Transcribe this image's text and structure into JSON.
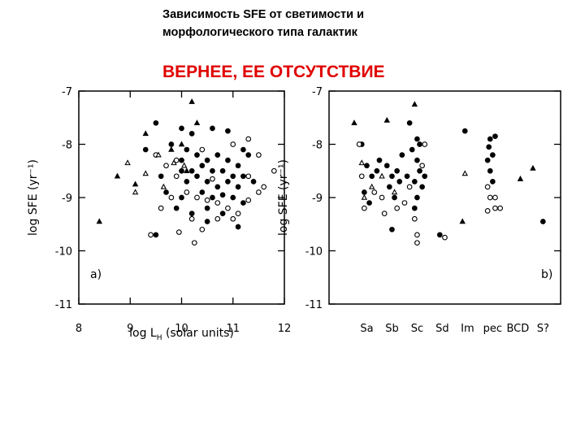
{
  "slide": {
    "title_lines": [
      "Зависимость SFE от светимости и",
      "морфологического типа галактик"
    ],
    "subtitle": "ВЕРНЕЕ, ЕЕ ОТСУТСТВИЕ"
  },
  "chart_data": [
    {
      "type": "scatter",
      "ylabel": "log SFE (yr⁻¹)",
      "xlabel": "log L",
      "xlabel_sub": "H",
      "xlabel_end": " (solar units)",
      "annotation": "a)",
      "xlim": [
        8,
        12
      ],
      "xticks": [
        8,
        9,
        10,
        11,
        12
      ],
      "ylim": [
        -11,
        -7
      ],
      "yticks": [
        -11,
        -10,
        -9,
        -8,
        -7
      ],
      "series": [
        {
          "marker": "filled-circle",
          "color": "#000000",
          "x": [
            9.5,
            9.8,
            10.0,
            10.2,
            10.6,
            10.9,
            10.1,
            10.3,
            10.5,
            10.7,
            10.9,
            11.1,
            11.3,
            10.0,
            10.2,
            10.4,
            10.6,
            10.8,
            11.0,
            11.2,
            11.4,
            10.1,
            10.3,
            10.5,
            10.7,
            10.9,
            11.1,
            10.0,
            10.4,
            10.6,
            10.8,
            11.0,
            9.6,
            9.7,
            9.3,
            9.9,
            10.2,
            10.5,
            10.8,
            11.2,
            9.5,
            10.5,
            11.1,
            10.0,
            11.2
          ],
          "y": [
            -7.6,
            -8.0,
            -7.7,
            -7.8,
            -7.7,
            -7.75,
            -8.1,
            -8.2,
            -8.3,
            -8.2,
            -8.3,
            -8.4,
            -8.2,
            -8.5,
            -8.5,
            -8.4,
            -8.5,
            -8.5,
            -8.6,
            -8.6,
            -8.7,
            -8.7,
            -8.6,
            -8.7,
            -8.8,
            -8.7,
            -8.8,
            -9.0,
            -8.9,
            -9.0,
            -8.95,
            -9.0,
            -8.6,
            -8.9,
            -8.1,
            -9.2,
            -9.3,
            -9.2,
            -9.3,
            -9.1,
            -9.7,
            -9.45,
            -9.55,
            -8.3,
            -8.1
          ]
        },
        {
          "marker": "open-circle",
          "color": "#000000",
          "x": [
            9.5,
            9.7,
            9.9,
            10.1,
            10.3,
            10.5,
            10.7,
            10.9,
            11.1,
            11.3,
            11.5,
            11.6,
            11.8,
            11.5,
            11.3,
            11.0,
            10.4,
            10.2,
            10.4,
            10.7,
            11.0,
            9.4,
            9.95,
            10.25,
            9.6,
            9.8,
            10.6,
            11.3,
            9.9
          ],
          "y": [
            -8.2,
            -8.4,
            -8.6,
            -8.9,
            -9.0,
            -9.05,
            -9.1,
            -9.2,
            -9.3,
            -9.05,
            -8.9,
            -8.8,
            -8.5,
            -8.2,
            -7.9,
            -8.0,
            -8.1,
            -9.4,
            -9.6,
            -9.4,
            -9.4,
            -9.7,
            -9.65,
            -9.85,
            -9.2,
            -9.0,
            -8.65,
            -8.6,
            -8.3
          ]
        },
        {
          "marker": "filled-triangle",
          "color": "#000000",
          "x": [
            8.4,
            8.75,
            9.1,
            9.3,
            9.8,
            10.0,
            10.2,
            10.3,
            10.1
          ],
          "y": [
            -9.45,
            -8.6,
            -8.75,
            -7.8,
            -8.1,
            -8.0,
            -7.2,
            -7.6,
            -8.5
          ]
        },
        {
          "marker": "open-triangle",
          "color": "#000000",
          "x": [
            8.95,
            9.3,
            9.55,
            9.85,
            9.65,
            9.1,
            10.05
          ],
          "y": [
            -8.35,
            -8.55,
            -8.2,
            -8.35,
            -8.8,
            -8.9,
            -8.4
          ]
        }
      ]
    },
    {
      "type": "scatter",
      "ylabel": "log SFE (yr⁻¹)",
      "annotation": "b)",
      "xlim": [
        -0.5,
        8.7
      ],
      "xticks": [
        {
          "value": 1,
          "label": "Sa"
        },
        {
          "value": 2,
          "label": "Sb"
        },
        {
          "value": 3,
          "label": "Sc"
        },
        {
          "value": 4,
          "label": "Sd"
        },
        {
          "value": 5,
          "label": "Im"
        },
        {
          "value": 6,
          "label": "pec"
        },
        {
          "value": 7,
          "label": "BCD"
        },
        {
          "value": 8,
          "label": "S?"
        }
      ],
      "ylim": [
        -11,
        -7
      ],
      "yticks": [
        -11,
        -10,
        -9,
        -8,
        -7
      ],
      "series": [
        {
          "marker": "filled-circle",
          "color": "#000000",
          "x": [
            0.8,
            1.0,
            1.2,
            1.4,
            0.9,
            1.1,
            1.5,
            1.8,
            2.0,
            2.2,
            2.4,
            1.9,
            2.1,
            2.3,
            2.6,
            2.0,
            2.8,
            3.0,
            3.1,
            2.9,
            3.0,
            3.2,
            2.9,
            3.1,
            3.0,
            2.7,
            3.3,
            3.9,
            4.9,
            5.8,
            5.9,
            6.0,
            5.9,
            6.0,
            6.1,
            5.85,
            8.0
          ],
          "y": [
            -8.0,
            -8.4,
            -8.6,
            -8.5,
            -8.9,
            -9.1,
            -8.3,
            -8.4,
            -8.6,
            -8.5,
            -8.2,
            -8.8,
            -9.0,
            -8.7,
            -8.6,
            -9.6,
            -8.1,
            -8.3,
            -8.5,
            -8.7,
            -9.0,
            -8.8,
            -9.2,
            -8.0,
            -7.9,
            -7.6,
            -8.6,
            -9.7,
            -7.75,
            -8.3,
            -8.5,
            -8.2,
            -7.9,
            -8.7,
            -7.85,
            -8.05,
            -9.45
          ]
        },
        {
          "marker": "open-circle",
          "color": "#000000",
          "x": [
            0.7,
            0.8,
            0.9,
            1.3,
            1.6,
            1.7,
            2.2,
            2.5,
            2.7,
            2.9,
            3.0,
            3.0,
            3.2,
            3.3,
            4.1,
            5.8,
            5.9,
            6.1,
            5.8,
            6.1,
            6.3
          ],
          "y": [
            -8.0,
            -8.6,
            -9.2,
            -8.9,
            -9.0,
            -9.3,
            -9.2,
            -9.1,
            -8.8,
            -9.4,
            -9.7,
            -9.85,
            -8.4,
            -8.0,
            -9.75,
            -8.8,
            -9.0,
            -9.0,
            -9.25,
            -9.2,
            -9.2
          ]
        },
        {
          "marker": "filled-triangle",
          "color": "#000000",
          "x": [
            0.5,
            1.8,
            2.9,
            4.8,
            7.1,
            7.6
          ],
          "y": [
            -7.6,
            -7.55,
            -7.25,
            -9.45,
            -8.65,
            -8.45
          ]
        },
        {
          "marker": "open-triangle",
          "color": "#000000",
          "x": [
            0.8,
            1.2,
            1.6,
            2.1,
            4.9,
            0.9
          ],
          "y": [
            -8.35,
            -8.8,
            -8.6,
            -8.9,
            -8.55,
            -9.0
          ]
        }
      ]
    }
  ]
}
